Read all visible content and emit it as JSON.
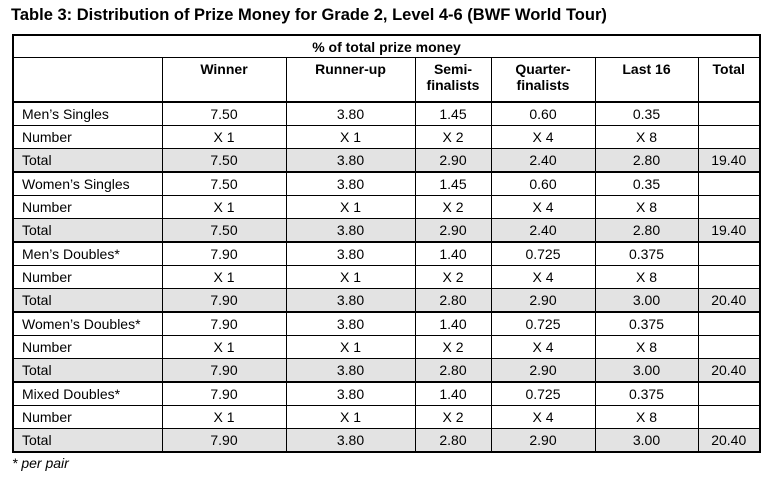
{
  "title": "Table 3: Distribution of Prize Money for Grade 2, Level 4-6 (BWF World Tour)",
  "table": {
    "super_header": "% of total prize money",
    "columns": [
      "",
      "Winner",
      "Runner-up",
      "Semi-\nfinalists",
      "Quarter-\nfinalists",
      "Last 16",
      "Total"
    ],
    "groups": [
      {
        "event": "Men’s Singles",
        "values": [
          "7.50",
          "3.80",
          "1.45",
          "0.60",
          "0.35",
          ""
        ],
        "number_label": "Number",
        "number": [
          "X 1",
          "X 1",
          "X 2",
          "X 4",
          "X 8",
          ""
        ],
        "total_label": "Total",
        "totals": [
          "7.50",
          "3.80",
          "2.90",
          "2.40",
          "2.80",
          "19.40"
        ]
      },
      {
        "event": "Women’s Singles",
        "values": [
          "7.50",
          "3.80",
          "1.45",
          "0.60",
          "0.35",
          ""
        ],
        "number_label": "Number",
        "number": [
          "X 1",
          "X 1",
          "X 2",
          "X 4",
          "X 8",
          ""
        ],
        "total_label": "Total",
        "totals": [
          "7.50",
          "3.80",
          "2.90",
          "2.40",
          "2.80",
          "19.40"
        ]
      },
      {
        "event": "Men’s Doubles*",
        "values": [
          "7.90",
          "3.80",
          "1.40",
          "0.725",
          "0.375",
          ""
        ],
        "number_label": "Number",
        "number": [
          "X 1",
          "X 1",
          "X 2",
          "X 4",
          "X 8",
          ""
        ],
        "total_label": "Total",
        "totals": [
          "7.90",
          "3.80",
          "2.80",
          "2.90",
          "3.00",
          "20.40"
        ]
      },
      {
        "event": "Women’s Doubles*",
        "values": [
          "7.90",
          "3.80",
          "1.40",
          "0.725",
          "0.375",
          ""
        ],
        "number_label": "Number",
        "number": [
          "X 1",
          "X 1",
          "X 2",
          "X 4",
          "X 8",
          ""
        ],
        "total_label": "Total",
        "totals": [
          "7.90",
          "3.80",
          "2.80",
          "2.90",
          "3.00",
          "20.40"
        ]
      },
      {
        "event": "Mixed Doubles*",
        "values": [
          "7.90",
          "3.80",
          "1.40",
          "0.725",
          "0.375",
          ""
        ],
        "number_label": "Number",
        "number": [
          "X 1",
          "X 1",
          "X 2",
          "X 4",
          "X 8",
          ""
        ],
        "total_label": "Total",
        "totals": [
          "7.90",
          "3.80",
          "2.80",
          "2.90",
          "3.00",
          "20.40"
        ]
      }
    ]
  },
  "footnote": "* per pair",
  "colors": {
    "total_row_bg": "#e3e3e3",
    "border": "#000000"
  }
}
